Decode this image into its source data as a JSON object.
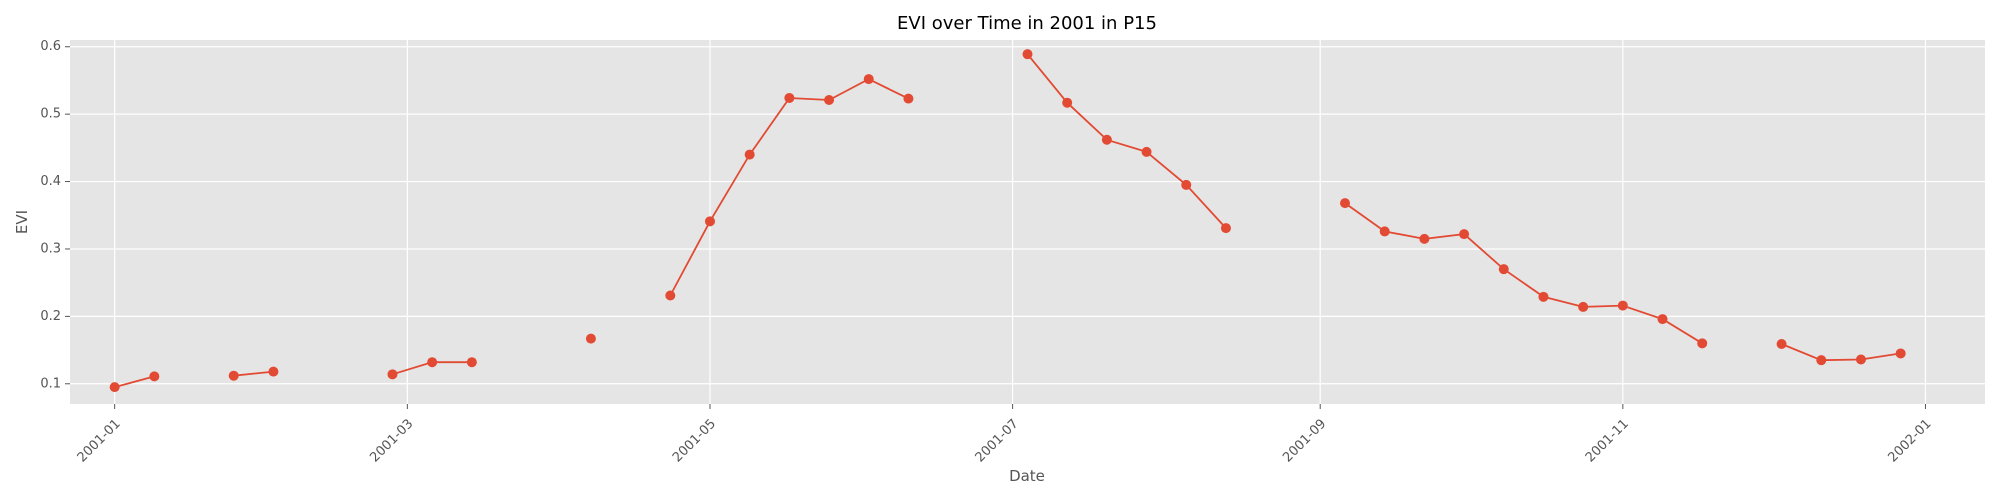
{
  "chart_data": {
    "type": "line",
    "title": "EVI over Time in 2001 in P15",
    "xlabel": "Date",
    "ylabel": "EVI",
    "grid": true,
    "background": "#E5E5E5",
    "line_color": "#E24A33",
    "x_ticks": [
      "2001-01",
      "2001-03",
      "2001-05",
      "2001-07",
      "2001-09",
      "2001-11",
      "2002-01"
    ],
    "y_ticks": [
      "0.1",
      "0.2",
      "0.3",
      "0.4",
      "0.5",
      "0.6"
    ],
    "xlim": [
      "2000-12-23",
      "2002-01-13"
    ],
    "ylim": [
      0.07,
      0.61
    ],
    "series": [
      {
        "points": [
          {
            "x": "2001-01-01",
            "y": 0.095
          },
          {
            "x": "2001-01-09",
            "y": 0.111
          },
          {
            "x": "2001-01-17",
            "y": null
          },
          {
            "x": "2001-01-25",
            "y": 0.112
          },
          {
            "x": "2001-02-02",
            "y": 0.118
          },
          {
            "x": "2001-02-10",
            "y": null
          },
          {
            "x": "2001-02-18",
            "y": null
          },
          {
            "x": "2001-02-26",
            "y": 0.114
          },
          {
            "x": "2001-03-06",
            "y": 0.132
          },
          {
            "x": "2001-03-14",
            "y": 0.132
          },
          {
            "x": "2001-03-22",
            "y": null
          },
          {
            "x": "2001-03-30",
            "y": null
          },
          {
            "x": "2001-04-07",
            "y": 0.167
          },
          {
            "x": "2001-04-15",
            "y": null
          },
          {
            "x": "2001-04-23",
            "y": 0.231
          },
          {
            "x": "2001-05-01",
            "y": 0.341
          },
          {
            "x": "2001-05-09",
            "y": 0.44
          },
          {
            "x": "2001-05-17",
            "y": 0.524
          },
          {
            "x": "2001-05-25",
            "y": 0.521
          },
          {
            "x": "2001-06-02",
            "y": 0.552
          },
          {
            "x": "2001-06-10",
            "y": 0.523
          },
          {
            "x": "2001-06-18",
            "y": null
          },
          {
            "x": "2001-06-26",
            "y": null
          },
          {
            "x": "2001-07-04",
            "y": 0.589
          },
          {
            "x": "2001-07-12",
            "y": 0.517
          },
          {
            "x": "2001-07-20",
            "y": 0.462
          },
          {
            "x": "2001-07-28",
            "y": 0.444
          },
          {
            "x": "2001-08-05",
            "y": 0.395
          },
          {
            "x": "2001-08-13",
            "y": 0.331
          },
          {
            "x": "2001-08-21",
            "y": null
          },
          {
            "x": "2001-08-29",
            "y": null
          },
          {
            "x": "2001-09-06",
            "y": 0.368
          },
          {
            "x": "2001-09-14",
            "y": 0.326
          },
          {
            "x": "2001-09-22",
            "y": 0.315
          },
          {
            "x": "2001-09-30",
            "y": 0.322
          },
          {
            "x": "2001-10-08",
            "y": 0.27
          },
          {
            "x": "2001-10-16",
            "y": 0.229
          },
          {
            "x": "2001-10-24",
            "y": 0.214
          },
          {
            "x": "2001-11-01",
            "y": 0.216
          },
          {
            "x": "2001-11-09",
            "y": 0.196
          },
          {
            "x": "2001-11-17",
            "y": 0.16
          },
          {
            "x": "2001-11-25",
            "y": null
          },
          {
            "x": "2001-12-03",
            "y": 0.159
          },
          {
            "x": "2001-12-11",
            "y": 0.135
          },
          {
            "x": "2001-12-19",
            "y": 0.136
          },
          {
            "x": "2001-12-27",
            "y": 0.145
          }
        ]
      }
    ]
  }
}
